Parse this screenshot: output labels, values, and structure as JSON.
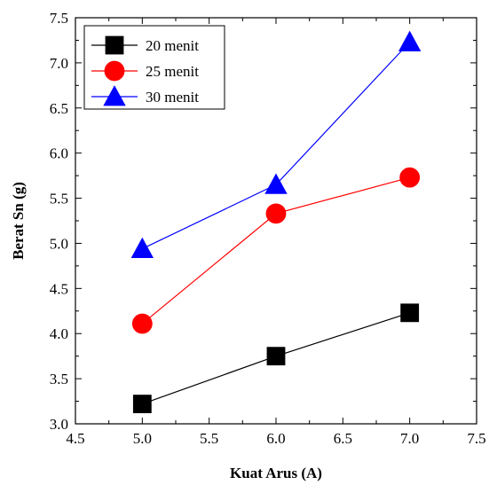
{
  "chart_data": {
    "type": "line",
    "xlabel": "Kuat Arus (A)",
    "ylabel": "Berat Sn (g)",
    "xlim": [
      4.5,
      7.5
    ],
    "ylim": [
      3.0,
      7.5
    ],
    "x_ticks": [
      "4.5",
      "5.0",
      "5.5",
      "6.0",
      "6.5",
      "7.0",
      "7.5"
    ],
    "y_ticks": [
      "3.0",
      "3.5",
      "4.0",
      "4.5",
      "5.0",
      "5.5",
      "6.0",
      "6.5",
      "7.0",
      "7.5"
    ],
    "grid": false,
    "legend_position": "top-left",
    "series": [
      {
        "name": "20 menit",
        "color": "#000000",
        "marker": "square",
        "x": [
          5.0,
          6.0,
          7.0
        ],
        "y": [
          3.22,
          3.75,
          4.23
        ]
      },
      {
        "name": "25 menit",
        "color": "#ff0000",
        "marker": "circle",
        "x": [
          5.0,
          6.0,
          7.0
        ],
        "y": [
          4.11,
          5.33,
          5.73
        ]
      },
      {
        "name": "30 menit",
        "color": "#0000ff",
        "marker": "triangle",
        "x": [
          5.0,
          6.0,
          7.0
        ],
        "y": [
          4.94,
          5.65,
          7.23
        ]
      }
    ]
  }
}
